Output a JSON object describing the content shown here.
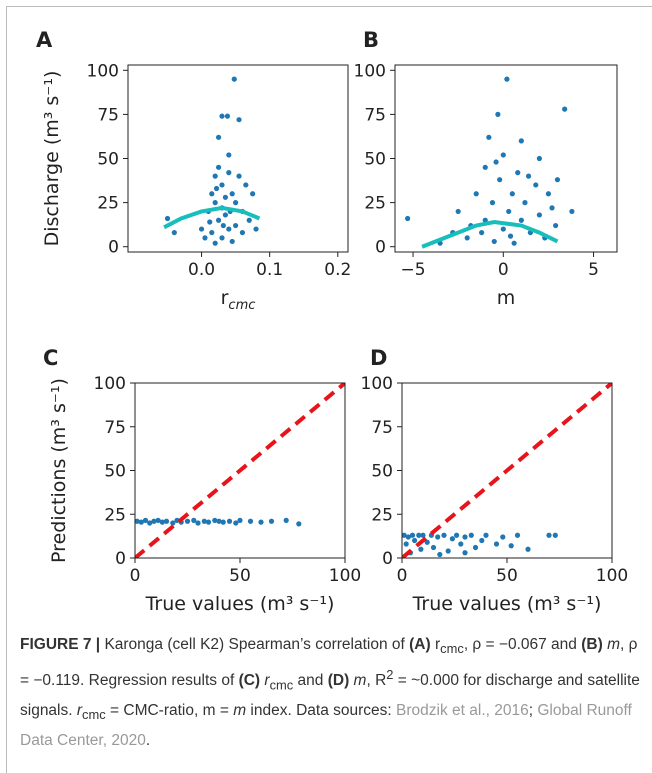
{
  "chart_data": [
    {
      "type": "scatter",
      "label": "A",
      "ylabel": "Discharge (m³ s⁻¹)",
      "xlabel": "r",
      "xlabel_sub": "cmc",
      "xlim": [
        -0.108,
        0.215
      ],
      "ylim": [
        -3,
        103
      ],
      "xticks": [
        {
          "value": 0,
          "label": "0.0"
        },
        {
          "value": 0.1,
          "label": "0.1"
        },
        {
          "value": 0.2,
          "label": "0.2"
        }
      ],
      "yticks": [
        0,
        25,
        50,
        75,
        100
      ],
      "series": [
        {
          "type": "scatter",
          "color": "#1f77b4",
          "x": [
            -0.05,
            -0.04,
            0.0,
            0.005,
            0.01,
            0.015,
            0.015,
            0.02,
            0.02,
            0.02,
            0.025,
            0.025,
            0.025,
            0.03,
            0.03,
            0.03,
            0.03,
            0.035,
            0.035,
            0.038,
            0.04,
            0.04,
            0.04,
            0.045,
            0.045,
            0.048,
            0.05,
            0.05,
            0.055,
            0.055,
            0.06,
            0.06,
            0.065,
            0.07,
            0.075,
            0.08,
            0.012,
            0.022,
            0.032,
            0.042
          ],
          "values": [
            16,
            8,
            10,
            5,
            20,
            30,
            8,
            40,
            2,
            25,
            45,
            15,
            62,
            35,
            74,
            5,
            22,
            28,
            18,
            74,
            42,
            10,
            52,
            30,
            3,
            95,
            25,
            12,
            40,
            72,
            20,
            8,
            35,
            15,
            30,
            10,
            14,
            33,
            12,
            20
          ]
        },
        {
          "type": "line",
          "color": "#17bebb",
          "x": [
            -0.055,
            -0.03,
            0.0,
            0.03,
            0.06,
            0.085
          ],
          "values": [
            11,
            16,
            20,
            22,
            20,
            16
          ]
        }
      ]
    },
    {
      "type": "scatter",
      "label": "B",
      "xlabel": "m",
      "xlim": [
        -6,
        6.3
      ],
      "ylim": [
        -3,
        103
      ],
      "xticks": [
        {
          "value": -5,
          "label": "−5"
        },
        0,
        5
      ],
      "yticks": [
        0,
        25,
        50,
        75,
        100
      ],
      "series": [
        {
          "type": "scatter",
          "color": "#1f77b4",
          "x": [
            -5.3,
            -3.5,
            -2.5,
            -2,
            -1.5,
            -1.2,
            -1,
            -1,
            -0.8,
            -0.6,
            -0.5,
            -0.3,
            -0.2,
            0,
            0,
            0.2,
            0.3,
            0.5,
            0.6,
            0.8,
            1,
            1,
            1.2,
            1.5,
            1.8,
            2,
            2,
            2.3,
            2.5,
            2.7,
            3,
            3.4,
            3.8,
            -1.8,
            -0.4,
            0.4,
            1.4,
            -2.8,
            2.9
          ],
          "values": [
            16,
            2,
            20,
            5,
            30,
            8,
            45,
            15,
            62,
            25,
            3,
            75,
            38,
            52,
            10,
            95,
            20,
            30,
            2,
            42,
            15,
            60,
            25,
            8,
            35,
            50,
            18,
            5,
            30,
            22,
            38,
            78,
            20,
            12,
            48,
            6,
            40,
            8,
            12
          ]
        },
        {
          "type": "line",
          "color": "#17bebb",
          "x": [
            -4.5,
            -3,
            -1.5,
            -0.5,
            1,
            2,
            3
          ],
          "values": [
            0,
            6,
            12,
            14,
            12,
            8,
            3
          ]
        }
      ]
    },
    {
      "type": "scatter",
      "label": "C",
      "ylabel": "Predictions (m³ s⁻¹)",
      "xlabel": "True values (m³ s⁻¹)",
      "xlim": [
        0,
        100
      ],
      "ylim": [
        0,
        100
      ],
      "xticks": [
        0,
        50,
        100
      ],
      "yticks": [
        0,
        25,
        50,
        75,
        100
      ],
      "series": [
        {
          "type": "scatter",
          "color": "#1f77b4",
          "x": [
            1,
            3,
            5,
            7,
            9,
            11,
            13,
            15,
            18,
            20,
            22,
            25,
            28,
            30,
            33,
            35,
            38,
            40,
            42,
            45,
            48,
            50,
            55,
            60,
            65,
            72,
            78
          ],
          "values": [
            21,
            20.5,
            21.5,
            20,
            21,
            21.5,
            20.5,
            21,
            20,
            21.5,
            20.5,
            21,
            21.5,
            20,
            21,
            20.5,
            21.5,
            21,
            20.5,
            21,
            20,
            21.5,
            21,
            20.5,
            21,
            21.5,
            19.5
          ]
        },
        {
          "type": "line",
          "color": "#e8141c",
          "dash": true,
          "x": [
            0,
            100
          ],
          "values": [
            0,
            100
          ]
        }
      ]
    },
    {
      "type": "scatter",
      "label": "D",
      "xlabel": "True values (m³ s⁻¹)",
      "xlim": [
        0,
        100
      ],
      "ylim": [
        0,
        100
      ],
      "xticks": [
        0,
        50,
        100
      ],
      "yticks": [
        0,
        25,
        50,
        75,
        100
      ],
      "series": [
        {
          "type": "scatter",
          "color": "#1f77b4",
          "x": [
            1,
            2,
            3,
            4,
            5,
            6,
            8,
            9,
            10,
            12,
            14,
            15,
            17,
            20,
            22,
            24,
            26,
            28,
            30,
            33,
            35,
            38,
            40,
            45,
            48,
            52,
            55,
            60,
            70,
            73,
            30,
            18
          ],
          "values": [
            13,
            8,
            12,
            3,
            13,
            10,
            13,
            5,
            13,
            9,
            13,
            6,
            12,
            13,
            4,
            11,
            13,
            8,
            12,
            13,
            6,
            10,
            13,
            8,
            12,
            7,
            13,
            5,
            13,
            13,
            3,
            2
          ]
        },
        {
          "type": "line",
          "color": "#e8141c",
          "dash": true,
          "x": [
            0,
            100
          ],
          "values": [
            0,
            100
          ]
        }
      ]
    }
  ],
  "caption": [
    {
      "text": "FIGURE 7 | ",
      "style": "bold"
    },
    {
      "text": "Karonga (cell K2) Spearman’s correlation of ",
      "style": "plain"
    },
    {
      "text": "(A)",
      "style": "bold"
    },
    {
      "text": " r",
      "style": "plain"
    },
    {
      "text": "cmc",
      "style": "sub"
    },
    {
      "text": ", ρ = −0.067 and ",
      "style": "plain"
    },
    {
      "text": "(B)",
      "style": "bold"
    },
    {
      "text": " m",
      "style": "italic"
    },
    {
      "text": ", ρ = −0.119. Regression results of ",
      "style": "plain"
    },
    {
      "text": "(C)",
      "style": "bold"
    },
    {
      "text": " r",
      "style": "italic"
    },
    {
      "text": "cmc",
      "style": "sub"
    },
    {
      "text": " and ",
      "style": "plain"
    },
    {
      "text": "(D)",
      "style": "bold"
    },
    {
      "text": " m",
      "style": "italic"
    },
    {
      "text": ", R",
      "style": "plain"
    },
    {
      "text": "2",
      "style": "sup"
    },
    {
      "text": " = ~0.000 for discharge and satellite signals. ",
      "style": "plain"
    },
    {
      "text": "r",
      "style": "italic"
    },
    {
      "text": "cmc",
      "style": "sub"
    },
    {
      "text": " = CMC-ratio, m = ",
      "style": "plain"
    },
    {
      "text": "m",
      "style": "italic"
    },
    {
      "text": " index. Data sources: ",
      "style": "plain"
    },
    {
      "text": "Brodzik et al., 2016",
      "style": "link"
    },
    {
      "text": "; ",
      "style": "plain"
    },
    {
      "text": "Global Runoff Data Center, 2020",
      "style": "link"
    },
    {
      "text": ".",
      "style": "plain"
    }
  ]
}
